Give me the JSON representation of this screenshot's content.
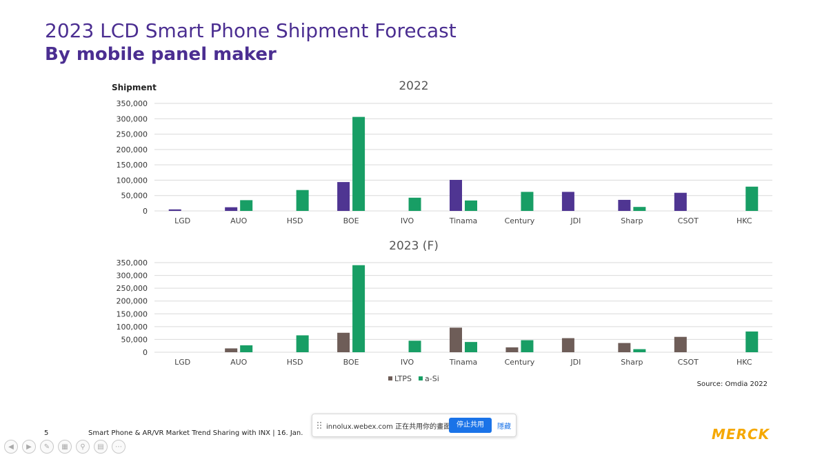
{
  "title": "2023 LCD Smart Phone Shipment Forecast",
  "subtitle": "By mobile panel maker",
  "colors": {
    "title": "#4b2e91",
    "ltps_2022": "#4f3592",
    "ltps_2023": "#6e5d58",
    "asi": "#189e65",
    "logo": "#f5a800",
    "button": "#1a73e8"
  },
  "chart_data": [
    {
      "type": "bar",
      "title": "2022",
      "ylabel": "Shipment",
      "ylim": [
        0,
        350000
      ],
      "yticks": [
        "350,000",
        "300,000",
        "250,000",
        "200,000",
        "150,000",
        "100,000",
        "50,000",
        "0"
      ],
      "categories": [
        "LGD",
        "AUO",
        "HSD",
        "BOE",
        "IVO",
        "Tinama",
        "Century",
        "JDI",
        "Sharp",
        "CSOT",
        "HKC"
      ],
      "series": [
        {
          "name": "LTPS",
          "color": "#4f3592",
          "values": [
            5000,
            12000,
            0,
            94000,
            0,
            101000,
            0,
            62000,
            36000,
            59000,
            0
          ]
        },
        {
          "name": "a-Si",
          "color": "#189e65",
          "values": [
            0,
            35000,
            68000,
            306000,
            43000,
            34000,
            62000,
            0,
            13000,
            0,
            79000
          ]
        }
      ],
      "grid": true
    },
    {
      "type": "bar",
      "title": "2023 (F)",
      "ylim": [
        0,
        350000
      ],
      "yticks": [
        "350,000",
        "300,000",
        "250,000",
        "200,000",
        "150,000",
        "100,000",
        "50,000",
        "0"
      ],
      "categories": [
        "LGD",
        "AUO",
        "HSD",
        "BOE",
        "IVO",
        "Tinama",
        "Century",
        "JDI",
        "Sharp",
        "CSOT",
        "HKC"
      ],
      "series": [
        {
          "name": "LTPS",
          "color": "#6e5d58",
          "values": [
            0,
            15000,
            0,
            76000,
            0,
            96000,
            19000,
            55000,
            36000,
            60000,
            0
          ]
        },
        {
          "name": "a-Si",
          "color": "#189e65",
          "values": [
            0,
            27000,
            66000,
            340000,
            45000,
            40000,
            47000,
            0,
            12000,
            0,
            81000
          ]
        }
      ],
      "grid": true,
      "legend": [
        "LTPS",
        "a-Si"
      ],
      "legend_position": "bottom"
    }
  ],
  "source": "Source: Omdia 2022",
  "footer": {
    "page_number": "5",
    "text": "Smart Phone & AR/VR Market Trend Sharing with INX | 16. Jan."
  },
  "logo": "MERCK",
  "share_bar": {
    "message": "innolux.webex.com 正在共用你的畫面。",
    "stop_label": "停止共用",
    "hide_label": "隱藏"
  },
  "toolbar": {
    "icons": [
      "prev-icon",
      "next-icon",
      "pen-icon",
      "slides-icon",
      "zoom-icon",
      "subtitles-icon",
      "more-icon"
    ]
  }
}
